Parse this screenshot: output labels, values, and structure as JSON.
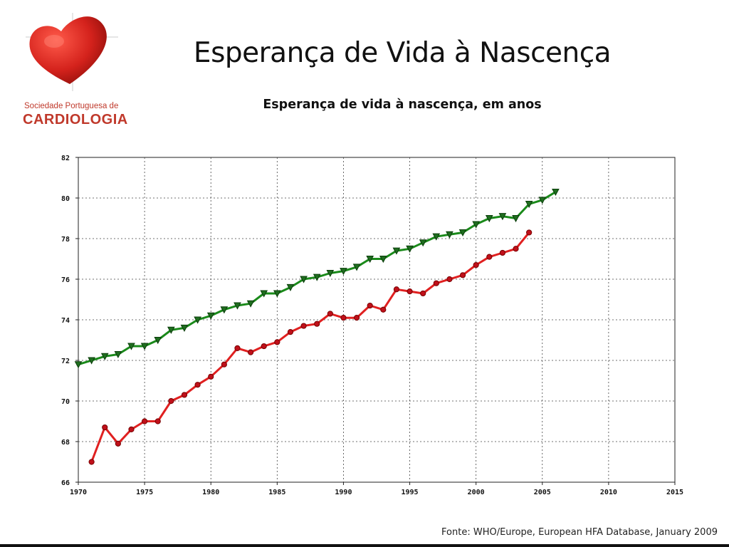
{
  "slide": {
    "title": "Esperança de Vida à Nascença",
    "source": "Fonte: WHO/Europe, European HFA Database, January 2009"
  },
  "logo": {
    "line1": "Sociedade Portuguesa de",
    "line2": "CARDIOLOGIA",
    "color": "#c0392b"
  },
  "chart_data": {
    "type": "line",
    "title": "Esperança de vida à nascença, em anos",
    "xlabel": "",
    "ylabel": "",
    "xlim": [
      1970,
      2015
    ],
    "ylim": [
      66,
      82
    ],
    "x_ticks": [
      1970,
      1975,
      1980,
      1985,
      1990,
      1995,
      2000,
      2005,
      2010,
      2015
    ],
    "y_ticks": [
      66,
      68,
      70,
      72,
      74,
      76,
      78,
      80,
      82
    ],
    "grid": true,
    "legend": "none",
    "series": [
      {
        "color": "#1a8a1a",
        "marker": "triangle-down",
        "x": [
          1970,
          1971,
          1972,
          1973,
          1974,
          1975,
          1976,
          1977,
          1978,
          1979,
          1980,
          1981,
          1982,
          1983,
          1984,
          1985,
          1986,
          1987,
          1988,
          1989,
          1990,
          1991,
          1992,
          1993,
          1994,
          1995,
          1996,
          1997,
          1998,
          1999,
          2000,
          2001,
          2002,
          2003,
          2004,
          2005,
          2006
        ],
        "y": [
          71.8,
          72.0,
          72.2,
          72.3,
          72.7,
          72.7,
          73.0,
          73.5,
          73.6,
          74.0,
          74.2,
          74.5,
          74.7,
          74.8,
          75.3,
          75.3,
          75.6,
          76.0,
          76.1,
          76.3,
          76.4,
          76.6,
          77.0,
          77.0,
          77.4,
          77.5,
          77.8,
          78.1,
          78.2,
          78.3,
          78.7,
          79.0,
          79.1,
          79.0,
          79.7,
          79.9,
          80.3
        ]
      },
      {
        "color": "#e02020",
        "marker": "circle",
        "x": [
          1971,
          1972,
          1973,
          1974,
          1975,
          1976,
          1977,
          1978,
          1979,
          1980,
          1981,
          1982,
          1983,
          1984,
          1985,
          1986,
          1987,
          1988,
          1989,
          1990,
          1991,
          1992,
          1993,
          1994,
          1995,
          1996,
          1997,
          1998,
          1999,
          2000,
          2001,
          2002,
          2003,
          2004
        ],
        "y": [
          67.0,
          68.7,
          67.9,
          68.6,
          69.0,
          69.0,
          70.0,
          70.3,
          70.8,
          71.2,
          71.8,
          72.6,
          72.4,
          72.7,
          72.9,
          73.4,
          73.7,
          73.8,
          74.3,
          74.1,
          74.1,
          74.7,
          74.5,
          75.5,
          75.4,
          75.3,
          75.8,
          76.0,
          76.2,
          76.7,
          77.1,
          77.3,
          77.5,
          78.3
        ]
      }
    ]
  }
}
